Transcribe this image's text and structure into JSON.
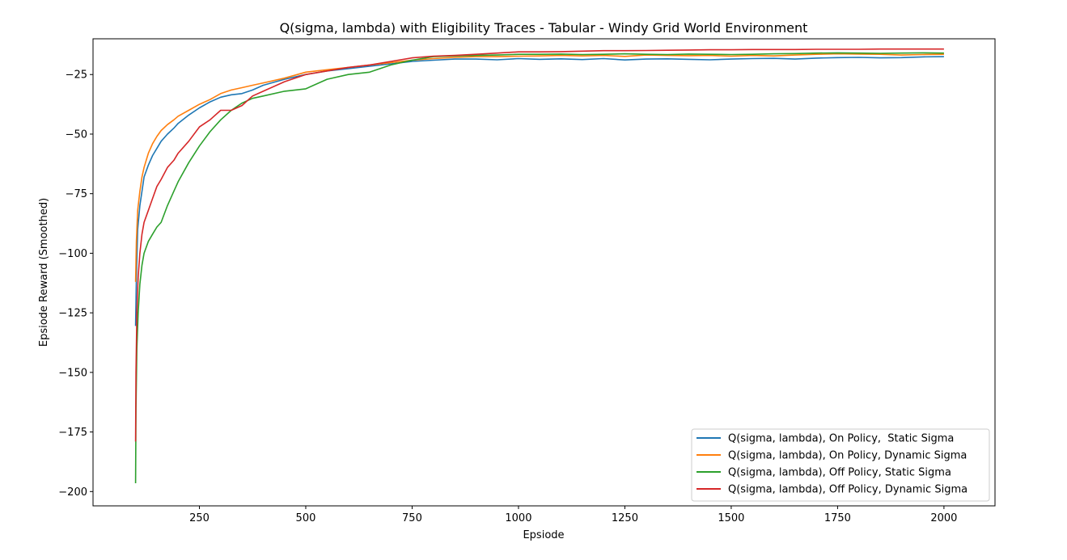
{
  "chart_data": {
    "type": "line",
    "title": "Q(sigma, lambda) with Eligibility Traces - Tabular - Windy Grid World Environment",
    "xlabel": "Epsiode",
    "ylabel": "Epsiode Reward (Smoothed)",
    "xlim": [
      0,
      2120
    ],
    "ylim": [
      -206,
      -10
    ],
    "xticks": [
      250,
      500,
      750,
      1000,
      1250,
      1500,
      1750,
      2000
    ],
    "yticks": [
      -200,
      -175,
      -150,
      -125,
      -100,
      -75,
      -50,
      -25
    ],
    "grid": false,
    "legend_position": "lower-right",
    "series": [
      {
        "name": "Q(sigma, lambda), On Policy,  Static Sigma",
        "color": "#1f77b4",
        "x": [
          100,
          102,
          105,
          110,
          115,
          120,
          130,
          140,
          150,
          160,
          175,
          190,
          200,
          225,
          250,
          275,
          300,
          325,
          350,
          375,
          400,
          450,
          500,
          550,
          600,
          650,
          700,
          750,
          800,
          850,
          900,
          950,
          1000,
          1050,
          1100,
          1150,
          1200,
          1250,
          1300,
          1350,
          1400,
          1450,
          1500,
          1550,
          1600,
          1650,
          1700,
          1750,
          1800,
          1850,
          1900,
          1950,
          2000
        ],
        "y": [
          -130.5,
          -110,
          -90,
          -80,
          -74,
          -68,
          -63,
          -59,
          -56,
          -53,
          -50,
          -47.5,
          -45.5,
          -42,
          -39,
          -36.5,
          -34.5,
          -33.5,
          -33,
          -31.5,
          -29.5,
          -27,
          -25,
          -23.5,
          -22.5,
          -21.5,
          -20.5,
          -19.5,
          -19,
          -18.5,
          -18.5,
          -18.8,
          -18.3,
          -18.6,
          -18.4,
          -18.7,
          -18.3,
          -18.9,
          -18.5,
          -18.4,
          -18.6,
          -18.8,
          -18.5,
          -18.3,
          -18.2,
          -18.5,
          -18.1,
          -17.9,
          -17.8,
          -18.0,
          -17.9,
          -17.6,
          -17.5
        ]
      },
      {
        "name": "Q(sigma, lambda), On Policy, Dynamic Sigma",
        "color": "#ff7f0e",
        "x": [
          100,
          102,
          105,
          110,
          115,
          120,
          130,
          140,
          150,
          160,
          175,
          190,
          200,
          225,
          250,
          275,
          300,
          325,
          350,
          375,
          400,
          450,
          500,
          550,
          600,
          650,
          700,
          750,
          800,
          850,
          900,
          950,
          1000,
          1050,
          1100,
          1150,
          1200,
          1250,
          1300,
          1350,
          1400,
          1450,
          1500,
          1550,
          1600,
          1650,
          1700,
          1750,
          1800,
          1850,
          1900,
          1950,
          2000
        ],
        "y": [
          -112,
          -95,
          -82,
          -74,
          -68,
          -64,
          -58,
          -54,
          -51,
          -48.5,
          -46,
          -44,
          -42.5,
          -40,
          -37.5,
          -35.5,
          -33,
          -31.5,
          -30.5,
          -29.5,
          -28.5,
          -26.5,
          -24,
          -23,
          -22,
          -21,
          -20,
          -19,
          -18.3,
          -17.8,
          -17.5,
          -17.5,
          -17.3,
          -17.2,
          -17.0,
          -17.2,
          -17.0,
          -17.4,
          -16.8,
          -17.0,
          -17.1,
          -17.0,
          -17.3,
          -17.0,
          -17.2,
          -16.8,
          -16.5,
          -16.3,
          -16.4,
          -16.5,
          -16.8,
          -16.6,
          -16.5
        ]
      },
      {
        "name": "Q(sigma, lambda), Off Policy, Static Sigma",
        "color": "#2ca02c",
        "x": [
          100,
          101,
          103,
          106,
          110,
          115,
          120,
          130,
          140,
          150,
          160,
          175,
          190,
          200,
          225,
          250,
          275,
          300,
          325,
          350,
          375,
          400,
          450,
          500,
          550,
          600,
          650,
          700,
          750,
          800,
          850,
          900,
          950,
          1000,
          1050,
          1100,
          1150,
          1200,
          1250,
          1300,
          1350,
          1400,
          1450,
          1500,
          1550,
          1600,
          1650,
          1700,
          1750,
          1800,
          1850,
          1900,
          1950,
          2000
        ],
        "y": [
          -196.5,
          -165,
          -140,
          -125,
          -113,
          -105,
          -100,
          -95,
          -92,
          -89,
          -87,
          -80,
          -74,
          -70,
          -62,
          -55,
          -49,
          -44,
          -40,
          -37,
          -35,
          -34,
          -32,
          -31,
          -27,
          -25,
          -24,
          -21,
          -19,
          -17.5,
          -17.2,
          -17,
          -16.8,
          -16.5,
          -16.5,
          -16.4,
          -16.6,
          -16.5,
          -16.3,
          -16.5,
          -16.6,
          -16.4,
          -16.5,
          -16.6,
          -16.5,
          -16.3,
          -16.2,
          -16.0,
          -15.9,
          -16.0,
          -16.1,
          -16.0,
          -15.9,
          -16.0
        ]
      },
      {
        "name": "Q(sigma, lambda), Off Policy, Dynamic Sigma",
        "color": "#d62728",
        "x": [
          100,
          101,
          103,
          106,
          110,
          115,
          120,
          130,
          140,
          150,
          160,
          175,
          190,
          200,
          225,
          250,
          275,
          300,
          325,
          350,
          375,
          400,
          450,
          500,
          550,
          600,
          650,
          700,
          750,
          800,
          850,
          900,
          950,
          1000,
          1050,
          1100,
          1150,
          1200,
          1250,
          1300,
          1350,
          1400,
          1450,
          1500,
          1550,
          1600,
          1650,
          1700,
          1750,
          1800,
          1850,
          1900,
          1950,
          2000
        ],
        "y": [
          -179,
          -150,
          -125,
          -110,
          -100,
          -92,
          -87,
          -82,
          -77,
          -72,
          -69,
          -64,
          -61,
          -58,
          -53,
          -47,
          -44,
          -40,
          -40,
          -38,
          -34,
          -32,
          -28,
          -25,
          -23.5,
          -22,
          -21,
          -19.5,
          -18,
          -17.3,
          -17,
          -16.5,
          -16,
          -15.5,
          -15.5,
          -15.4,
          -15.2,
          -15.0,
          -15.0,
          -14.9,
          -14.8,
          -14.7,
          -14.6,
          -14.6,
          -14.5,
          -14.5,
          -14.5,
          -14.4,
          -14.4,
          -14.4,
          -14.3,
          -14.3,
          -14.3,
          -14.3
        ]
      }
    ]
  }
}
